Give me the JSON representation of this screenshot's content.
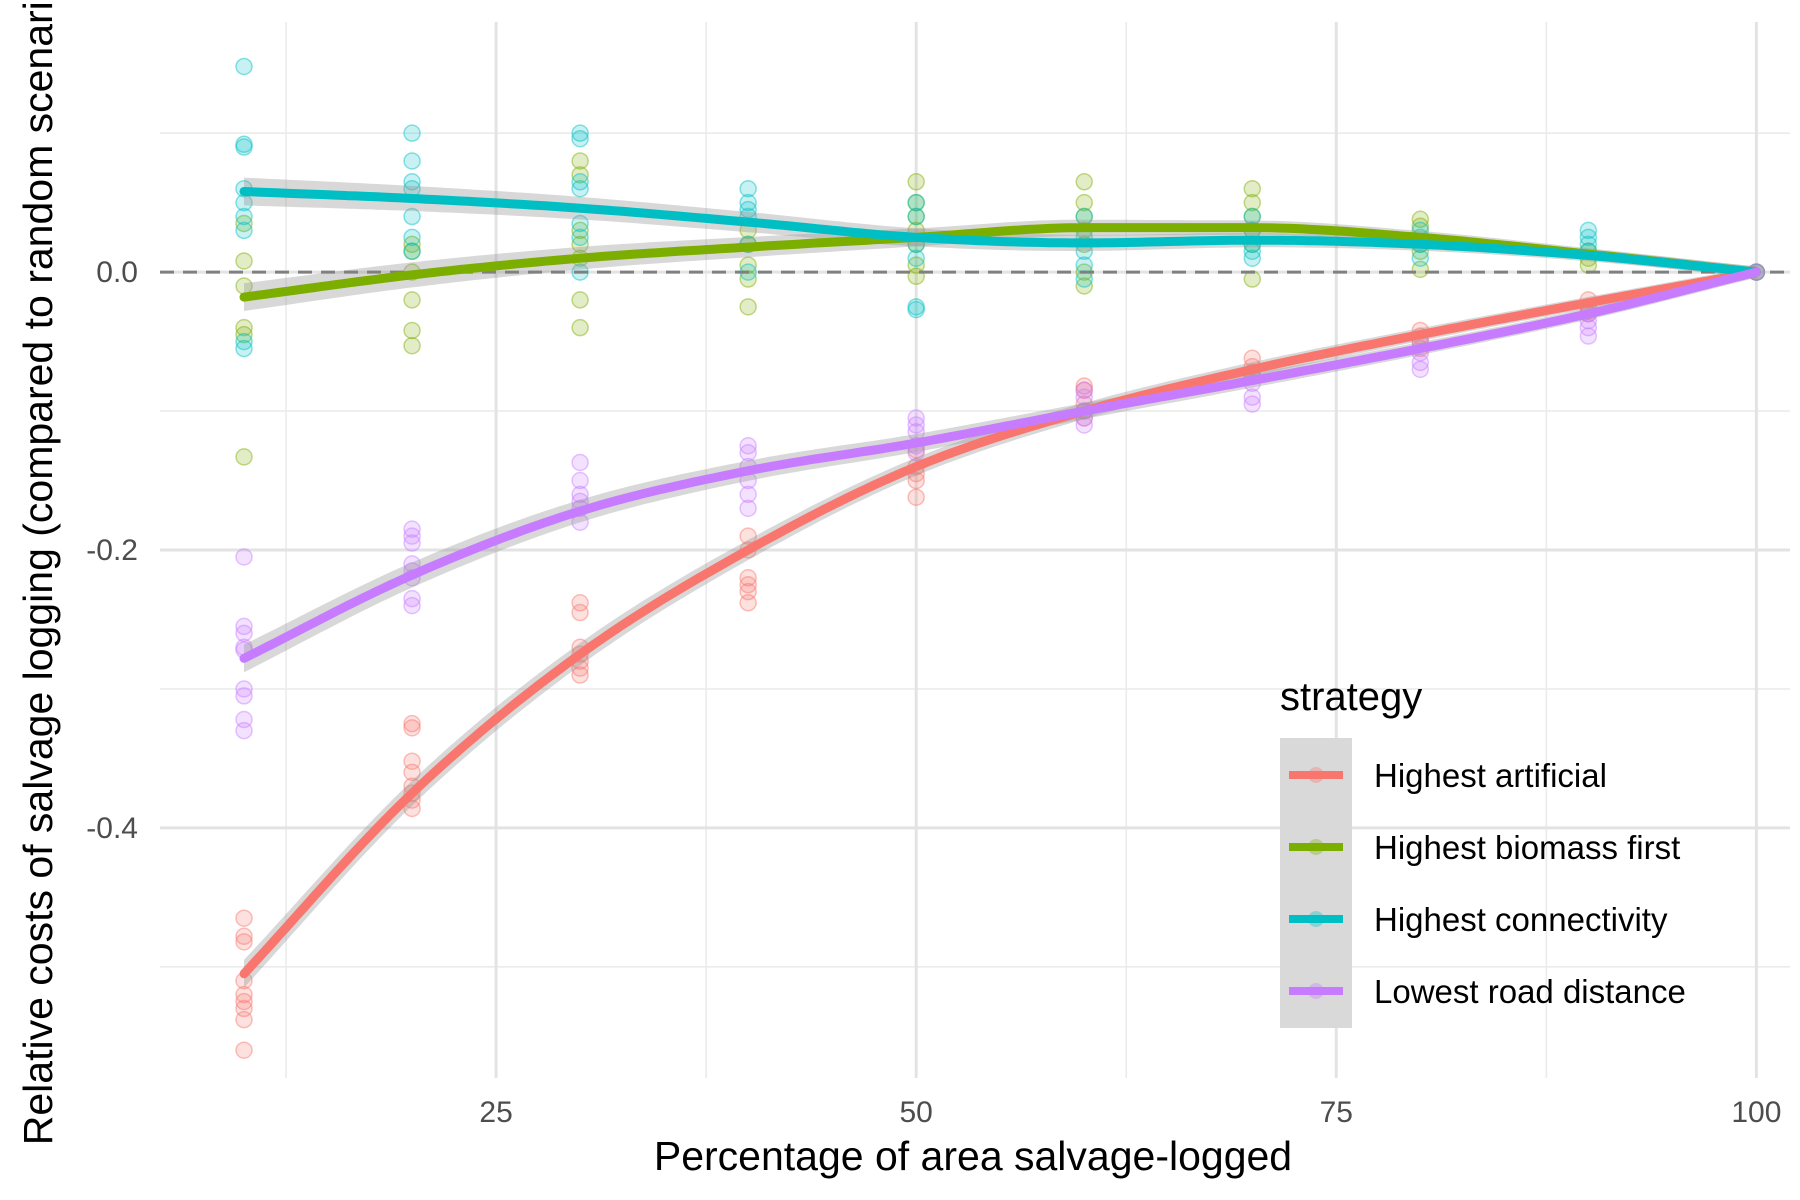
{
  "chart_data": {
    "type": "scatter",
    "xlabel": "Percentage of area salvage-logged",
    "ylabel": "Relative costs of salvage logging (compared to random scenario)",
    "xlim": [
      5,
      102
    ],
    "ylim": [
      -0.58,
      0.18
    ],
    "x_ticks": [
      25,
      50,
      75,
      100
    ],
    "x_tick_labels": [
      "25",
      "50",
      "75",
      "100"
    ],
    "y_ticks": [
      0.0,
      -0.2,
      -0.4
    ],
    "y_tick_labels": [
      "0.0",
      "-0.2",
      "-0.4"
    ],
    "x_minor_ticks": [
      12.5,
      37.5,
      62.5,
      87.5
    ],
    "y_minor_ticks": [
      0.1,
      -0.1,
      -0.3,
      -0.5
    ],
    "grid": true,
    "reference_line": {
      "y": 0.0,
      "style": "dashed"
    },
    "legend": {
      "title": "strategy",
      "placement": "bottom-right"
    },
    "series": [
      {
        "name": "Highest artificial",
        "color": "#F8766D",
        "smooth": {
          "x": [
            10,
            20,
            30,
            40,
            50,
            60,
            70,
            80,
            90,
            100
          ],
          "y": [
            -0.505,
            -0.375,
            -0.275,
            -0.2,
            -0.14,
            -0.1,
            -0.07,
            -0.045,
            -0.022,
            0.0
          ]
        },
        "points": [
          [
            10,
            -0.465
          ],
          [
            10,
            -0.478
          ],
          [
            10,
            -0.482
          ],
          [
            10,
            -0.51
          ],
          [
            10,
            -0.52
          ],
          [
            10,
            -0.525
          ],
          [
            10,
            -0.53
          ],
          [
            10,
            -0.538
          ],
          [
            10,
            -0.56
          ],
          [
            20,
            -0.325
          ],
          [
            20,
            -0.328
          ],
          [
            20,
            -0.352
          ],
          [
            20,
            -0.36
          ],
          [
            20,
            -0.37
          ],
          [
            20,
            -0.375
          ],
          [
            20,
            -0.38
          ],
          [
            20,
            -0.386
          ],
          [
            30,
            -0.238
          ],
          [
            30,
            -0.245
          ],
          [
            30,
            -0.27
          ],
          [
            30,
            -0.275
          ],
          [
            30,
            -0.28
          ],
          [
            30,
            -0.285
          ],
          [
            30,
            -0.29
          ],
          [
            40,
            -0.19
          ],
          [
            40,
            -0.2
          ],
          [
            40,
            -0.22
          ],
          [
            40,
            -0.225
          ],
          [
            40,
            -0.23
          ],
          [
            40,
            -0.238
          ],
          [
            50,
            -0.128
          ],
          [
            50,
            -0.14
          ],
          [
            50,
            -0.145
          ],
          [
            50,
            -0.15
          ],
          [
            50,
            -0.162
          ],
          [
            60,
            -0.082
          ],
          [
            60,
            -0.085
          ],
          [
            60,
            -0.095
          ],
          [
            60,
            -0.1
          ],
          [
            60,
            -0.105
          ],
          [
            70,
            -0.062
          ],
          [
            70,
            -0.068
          ],
          [
            70,
            -0.072
          ],
          [
            70,
            -0.075
          ],
          [
            80,
            -0.042
          ],
          [
            80,
            -0.046
          ],
          [
            80,
            -0.05
          ],
          [
            80,
            -0.055
          ],
          [
            90,
            -0.02
          ],
          [
            90,
            -0.025
          ],
          [
            90,
            -0.028
          ],
          [
            90,
            -0.03
          ],
          [
            100,
            0.0
          ],
          [
            100,
            0.0
          ]
        ]
      },
      {
        "name": "Highest biomass first",
        "color": "#7CAE00",
        "smooth": {
          "x": [
            10,
            20,
            30,
            40,
            50,
            60,
            70,
            80,
            90,
            100
          ],
          "y": [
            -0.018,
            -0.002,
            0.01,
            0.018,
            0.025,
            0.032,
            0.032,
            0.025,
            0.013,
            0.0
          ]
        },
        "points": [
          [
            10,
            0.035
          ],
          [
            10,
            0.008
          ],
          [
            10,
            -0.01
          ],
          [
            10,
            -0.04
          ],
          [
            10,
            -0.045
          ],
          [
            10,
            -0.133
          ],
          [
            20,
            0.02
          ],
          [
            20,
            0.015
          ],
          [
            20,
            0.0
          ],
          [
            20,
            -0.02
          ],
          [
            20,
            -0.042
          ],
          [
            20,
            -0.053
          ],
          [
            30,
            0.08
          ],
          [
            30,
            0.07
          ],
          [
            30,
            0.03
          ],
          [
            30,
            0.02
          ],
          [
            30,
            0.01
          ],
          [
            30,
            -0.02
          ],
          [
            30,
            -0.04
          ],
          [
            40,
            0.03
          ],
          [
            40,
            0.02
          ],
          [
            40,
            0.005
          ],
          [
            40,
            -0.005
          ],
          [
            40,
            -0.025
          ],
          [
            50,
            0.065
          ],
          [
            50,
            0.05
          ],
          [
            50,
            0.04
          ],
          [
            50,
            0.03
          ],
          [
            50,
            0.02
          ],
          [
            50,
            0.005
          ],
          [
            50,
            -0.003
          ],
          [
            60,
            0.065
          ],
          [
            60,
            0.05
          ],
          [
            60,
            0.04
          ],
          [
            60,
            0.03
          ],
          [
            60,
            0.02
          ],
          [
            60,
            0.0
          ],
          [
            60,
            -0.01
          ],
          [
            70,
            0.06
          ],
          [
            70,
            0.05
          ],
          [
            70,
            0.04
          ],
          [
            70,
            0.03
          ],
          [
            70,
            0.02
          ],
          [
            70,
            -0.005
          ],
          [
            80,
            0.038
          ],
          [
            80,
            0.033
          ],
          [
            80,
            0.02
          ],
          [
            80,
            0.015
          ],
          [
            80,
            0.002
          ],
          [
            90,
            0.015
          ],
          [
            90,
            0.01
          ],
          [
            90,
            0.005
          ],
          [
            100,
            0.0
          ]
        ]
      },
      {
        "name": "Highest connectivity",
        "color": "#00BFC4",
        "smooth": {
          "x": [
            10,
            20,
            30,
            40,
            50,
            60,
            70,
            80,
            90,
            100
          ],
          "y": [
            0.058,
            0.053,
            0.046,
            0.036,
            0.025,
            0.021,
            0.023,
            0.02,
            0.012,
            0.0
          ]
        },
        "points": [
          [
            10,
            0.148
          ],
          [
            10,
            0.092
          ],
          [
            10,
            0.09
          ],
          [
            10,
            0.06
          ],
          [
            10,
            0.05
          ],
          [
            10,
            0.04
          ],
          [
            10,
            0.03
          ],
          [
            10,
            -0.05
          ],
          [
            10,
            -0.055
          ],
          [
            20,
            0.1
          ],
          [
            20,
            0.08
          ],
          [
            20,
            0.065
          ],
          [
            20,
            0.06
          ],
          [
            20,
            0.04
          ],
          [
            20,
            0.025
          ],
          [
            20,
            0.015
          ],
          [
            30,
            0.1
          ],
          [
            30,
            0.096
          ],
          [
            30,
            0.065
          ],
          [
            30,
            0.06
          ],
          [
            30,
            0.035
          ],
          [
            30,
            0.025
          ],
          [
            30,
            0.0
          ],
          [
            40,
            0.06
          ],
          [
            40,
            0.05
          ],
          [
            40,
            0.045
          ],
          [
            40,
            0.04
          ],
          [
            40,
            0.02
          ],
          [
            40,
            0.0
          ],
          [
            50,
            0.05
          ],
          [
            50,
            0.04
          ],
          [
            50,
            0.02
          ],
          [
            50,
            0.01
          ],
          [
            50,
            -0.025
          ],
          [
            50,
            -0.027
          ],
          [
            60,
            0.04
          ],
          [
            60,
            0.025
          ],
          [
            60,
            0.015
          ],
          [
            60,
            0.005
          ],
          [
            60,
            -0.005
          ],
          [
            70,
            0.04
          ],
          [
            70,
            0.03
          ],
          [
            70,
            0.02
          ],
          [
            70,
            0.015
          ],
          [
            70,
            0.01
          ],
          [
            80,
            0.03
          ],
          [
            80,
            0.025
          ],
          [
            80,
            0.02
          ],
          [
            80,
            0.01
          ],
          [
            90,
            0.03
          ],
          [
            90,
            0.025
          ],
          [
            90,
            0.02
          ],
          [
            90,
            0.015
          ],
          [
            100,
            0.0
          ]
        ]
      },
      {
        "name": "Lowest road distance",
        "color": "#C77CFF",
        "smooth": {
          "x": [
            10,
            20,
            30,
            40,
            50,
            60,
            70,
            80,
            90,
            100
          ],
          "y": [
            -0.278,
            -0.218,
            -0.172,
            -0.143,
            -0.123,
            -0.1,
            -0.078,
            -0.055,
            -0.03,
            0.0
          ]
        },
        "points": [
          [
            10,
            -0.205
          ],
          [
            10,
            -0.255
          ],
          [
            10,
            -0.26
          ],
          [
            10,
            -0.27
          ],
          [
            10,
            -0.272
          ],
          [
            10,
            -0.3
          ],
          [
            10,
            -0.305
          ],
          [
            10,
            -0.322
          ],
          [
            10,
            -0.33
          ],
          [
            20,
            -0.185
          ],
          [
            20,
            -0.19
          ],
          [
            20,
            -0.195
          ],
          [
            20,
            -0.21
          ],
          [
            20,
            -0.215
          ],
          [
            20,
            -0.22
          ],
          [
            20,
            -0.235
          ],
          [
            20,
            -0.24
          ],
          [
            30,
            -0.137
          ],
          [
            30,
            -0.15
          ],
          [
            30,
            -0.16
          ],
          [
            30,
            -0.165
          ],
          [
            30,
            -0.17
          ],
          [
            30,
            -0.18
          ],
          [
            40,
            -0.125
          ],
          [
            40,
            -0.13
          ],
          [
            40,
            -0.14
          ],
          [
            40,
            -0.15
          ],
          [
            40,
            -0.16
          ],
          [
            40,
            -0.17
          ],
          [
            50,
            -0.105
          ],
          [
            50,
            -0.11
          ],
          [
            50,
            -0.115
          ],
          [
            50,
            -0.125
          ],
          [
            50,
            -0.13
          ],
          [
            60,
            -0.085
          ],
          [
            60,
            -0.09
          ],
          [
            60,
            -0.1
          ],
          [
            60,
            -0.105
          ],
          [
            60,
            -0.11
          ],
          [
            70,
            -0.075
          ],
          [
            70,
            -0.08
          ],
          [
            70,
            -0.09
          ],
          [
            70,
            -0.095
          ],
          [
            80,
            -0.05
          ],
          [
            80,
            -0.058
          ],
          [
            80,
            -0.065
          ],
          [
            80,
            -0.07
          ],
          [
            90,
            -0.03
          ],
          [
            90,
            -0.035
          ],
          [
            90,
            -0.04
          ],
          [
            90,
            -0.046
          ],
          [
            100,
            0.0
          ]
        ]
      }
    ]
  }
}
